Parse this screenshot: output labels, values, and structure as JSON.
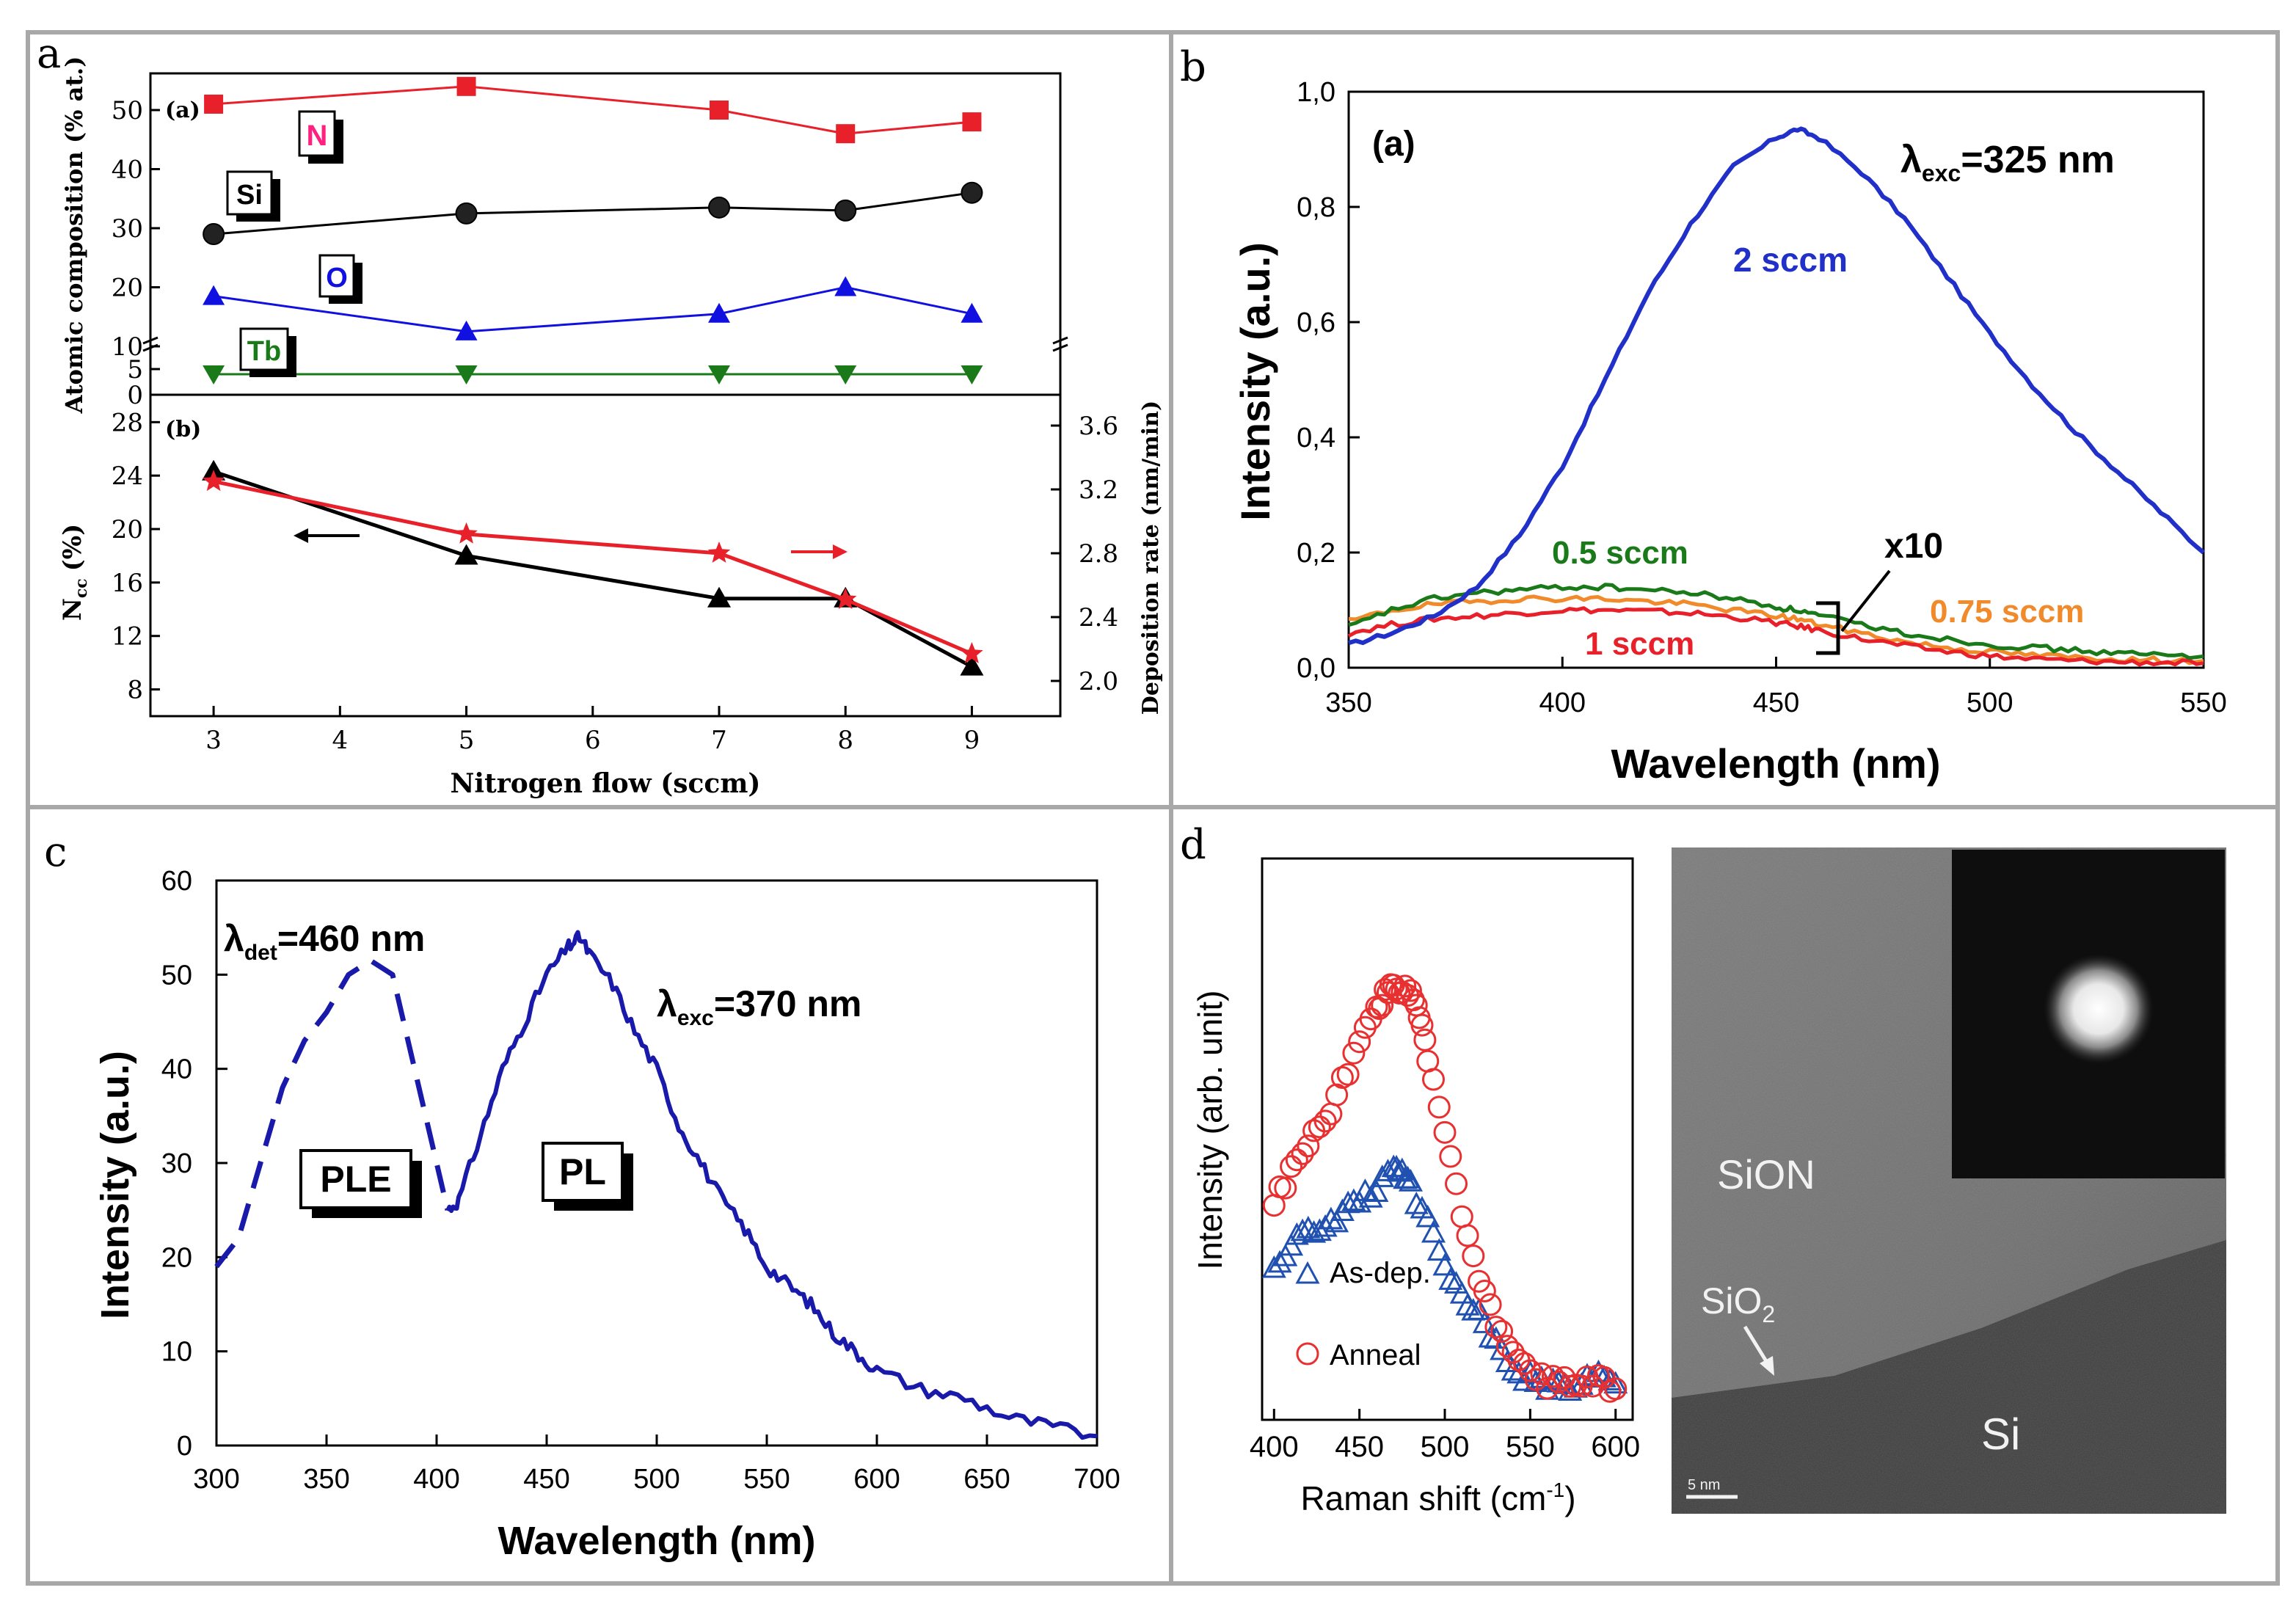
{
  "panel_labels": [
    "a",
    "b",
    "c",
    "d"
  ],
  "colors": {
    "red": "#e8202a",
    "black": "#000000",
    "blue": "#1010e0",
    "green": "#1a7a1a",
    "orange": "#f08a2a",
    "navy": "#1a1aaa",
    "pink": "#ff2080",
    "frame": "#a8a8a8",
    "raman_red": "#e83030",
    "raman_blue": "#2050b0"
  },
  "chart_data": [
    {
      "id": "a_top",
      "type": "line",
      "panel_tag": "(a)",
      "ylabel": "Atomic composition (% at.)",
      "x": [
        3,
        5,
        7,
        8,
        9
      ],
      "xlim": [
        2.5,
        9.7
      ],
      "yticks_upper": [
        "10",
        "20",
        "30",
        "40",
        "50"
      ],
      "yticks_lower": [
        "0",
        "5"
      ],
      "series": [
        {
          "name": "N",
          "marker": "square",
          "values": [
            51,
            54,
            50,
            46,
            48
          ]
        },
        {
          "name": "Si",
          "marker": "circle",
          "values": [
            29,
            32.5,
            33.5,
            33,
            36
          ]
        },
        {
          "name": "O",
          "marker": "triangle-up",
          "values": [
            18.5,
            12.5,
            15.5,
            20,
            15.5
          ]
        },
        {
          "name": "Tb",
          "marker": "triangle-down",
          "values": [
            4,
            4,
            4,
            4,
            4
          ]
        }
      ]
    },
    {
      "id": "a_bottom",
      "type": "line",
      "panel_tag": "(b)",
      "xlabel": "Nitrogen flow (sccm)",
      "ylabel_left": "N",
      "ylabel_left_sub": "cc",
      "ylabel_left_unit": "(%)",
      "ylabel_right": "Deposition rate (nm/min)",
      "xticks": [
        "3",
        "4",
        "5",
        "6",
        "7",
        "8",
        "9"
      ],
      "yticks_left": [
        "8",
        "12",
        "16",
        "20",
        "24",
        "28"
      ],
      "yticks_right": [
        "2.0",
        "2.4",
        "2.8",
        "3.2",
        "3.6"
      ],
      "ylim_left": [
        6,
        29.5
      ],
      "x": [
        3,
        5,
        7,
        8,
        9
      ],
      "series": [
        {
          "name": "Ncc",
          "marker": "triangle-up",
          "axis": "left",
          "values": [
            24.3,
            18,
            14.8,
            14.8,
            9.7
          ]
        },
        {
          "name": "Deposition rate",
          "marker": "star",
          "axis": "right",
          "values": [
            3.25,
            2.92,
            2.8,
            2.51,
            2.17
          ]
        }
      ]
    },
    {
      "id": "b",
      "type": "line",
      "panel_tag": "(a)",
      "xlabel": "Wavelength (nm)",
      "ylabel": "Intensity (a.u.)",
      "xlim": [
        350,
        550
      ],
      "ylim": [
        0,
        1.0
      ],
      "xticks": [
        "350",
        "400",
        "450",
        "500",
        "550"
      ],
      "yticks": [
        "0,0",
        "0,2",
        "0,4",
        "0,6",
        "0,8",
        "1,0"
      ],
      "annotation_lambda": "λ",
      "annotation_sub": "exc",
      "annotation_value": "=325 nm",
      "x10_label": "x10",
      "x": [
        350,
        360,
        370,
        380,
        390,
        400,
        410,
        420,
        430,
        440,
        450,
        455,
        460,
        470,
        480,
        490,
        500,
        510,
        520,
        530,
        540,
        550
      ],
      "series": [
        {
          "name": "2 sccm",
          "values": [
            0.04,
            0.06,
            0.09,
            0.14,
            0.23,
            0.35,
            0.5,
            0.65,
            0.77,
            0.87,
            0.92,
            0.935,
            0.92,
            0.86,
            0.78,
            0.68,
            0.58,
            0.49,
            0.41,
            0.34,
            0.27,
            0.2
          ]
        },
        {
          "name": "0.5 sccm",
          "values": [
            0.07,
            0.1,
            0.12,
            0.13,
            0.135,
            0.14,
            0.14,
            0.135,
            0.13,
            0.12,
            0.105,
            0.1,
            0.09,
            0.075,
            0.06,
            0.05,
            0.04,
            0.035,
            0.03,
            0.025,
            0.022,
            0.02
          ]
        },
        {
          "name": "0.75 sccm",
          "values": [
            0.08,
            0.1,
            0.11,
            0.115,
            0.12,
            0.12,
            0.12,
            0.115,
            0.11,
            0.1,
            0.09,
            0.085,
            0.075,
            0.06,
            0.045,
            0.035,
            0.028,
            0.022,
            0.018,
            0.015,
            0.013,
            0.012
          ]
        },
        {
          "name": "1 sccm",
          "values": [
            0.06,
            0.075,
            0.085,
            0.09,
            0.095,
            0.1,
            0.1,
            0.098,
            0.095,
            0.088,
            0.078,
            0.072,
            0.065,
            0.05,
            0.038,
            0.028,
            0.02,
            0.015,
            0.012,
            0.01,
            0.009,
            0.008
          ]
        }
      ]
    },
    {
      "id": "c",
      "type": "line",
      "xlabel": "Wavelength (nm)",
      "ylabel": "Intensity (a.u.)",
      "xlim": [
        300,
        700
      ],
      "ylim": [
        0,
        60
      ],
      "xticks": [
        "300",
        "350",
        "400",
        "450",
        "500",
        "550",
        "600",
        "650",
        "700"
      ],
      "yticks": [
        "0",
        "10",
        "20",
        "30",
        "40",
        "50",
        "60"
      ],
      "ple_lambda": "λ",
      "ple_sub": "det",
      "ple_value": "=460 nm",
      "pl_lambda": "λ",
      "pl_sub": "exc",
      "pl_value": "=370 nm",
      "series": [
        {
          "name": "PLE",
          "style": "dashed",
          "x": [
            300,
            310,
            320,
            330,
            340,
            350,
            360,
            370,
            380,
            390,
            400,
            405
          ],
          "values": [
            19,
            22,
            30,
            38,
            43,
            46,
            50,
            51.5,
            50,
            40,
            30,
            25
          ]
        },
        {
          "name": "PL",
          "style": "solid",
          "x": [
            405,
            410,
            420,
            430,
            440,
            450,
            460,
            465,
            470,
            480,
            490,
            500,
            510,
            520,
            530,
            540,
            550,
            560,
            570,
            580,
            590,
            600,
            620,
            640,
            660,
            680,
            700
          ],
          "values": [
            25,
            26,
            33,
            40,
            45,
            50,
            53,
            54,
            52,
            49,
            44,
            40,
            34,
            30,
            26,
            23,
            19,
            17,
            15,
            12,
            10,
            8,
            6,
            5,
            3,
            2,
            1
          ]
        }
      ],
      "box_labels": [
        "PLE",
        "PL"
      ]
    },
    {
      "id": "d_raman",
      "type": "scatter",
      "xlabel": "Raman shift (cm",
      "xlabel_sup": "-1",
      "xlabel_close": ")",
      "ylabel": "Intensity (arb. unit)",
      "xlim": [
        393,
        610
      ],
      "xticks": [
        "400",
        "450",
        "500",
        "550",
        "600"
      ],
      "series": [
        {
          "name": "As-dep.",
          "marker": "triangle-open",
          "x": [
            400,
            410,
            420,
            430,
            440,
            450,
            460,
            470,
            475,
            480,
            490,
            500,
            510,
            520,
            530,
            540,
            550,
            560,
            570,
            580,
            590,
            600
          ],
          "values": [
            0.3,
            0.34,
            0.36,
            0.38,
            0.4,
            0.42,
            0.45,
            0.48,
            0.47,
            0.45,
            0.38,
            0.3,
            0.24,
            0.2,
            0.15,
            0.1,
            0.08,
            0.07,
            0.06,
            0.06,
            0.1,
            0.07
          ]
        },
        {
          "name": "Anneal",
          "marker": "circle-open",
          "x": [
            400,
            410,
            420,
            430,
            440,
            450,
            460,
            465,
            470,
            475,
            480,
            485,
            490,
            500,
            510,
            520,
            530,
            540,
            550,
            560,
            570,
            580,
            590,
            600
          ],
          "values": [
            0.42,
            0.48,
            0.53,
            0.58,
            0.65,
            0.73,
            0.8,
            0.82,
            0.84,
            0.83,
            0.82,
            0.78,
            0.7,
            0.55,
            0.4,
            0.28,
            0.18,
            0.12,
            0.09,
            0.07,
            0.08,
            0.07,
            0.08,
            0.06
          ]
        }
      ]
    }
  ],
  "tem": {
    "labels": [
      "SiON",
      "SiO",
      "Si"
    ],
    "sio2_sub": "2",
    "scale_bar": "5 nm"
  }
}
